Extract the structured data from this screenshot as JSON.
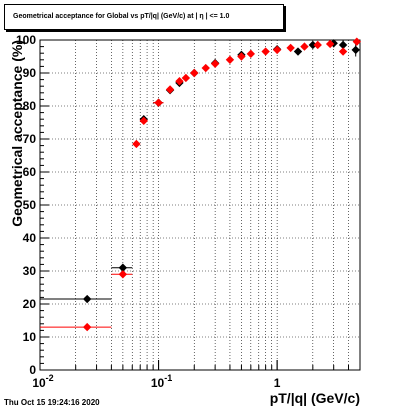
{
  "title": "Geometrical acceptance for Global vs pT/|q| (GeV/c) at | η | <= 1.0",
  "timestamp": "Thu Oct 15 19:24:16 2020",
  "colors": {
    "series_black": "#000000",
    "series_red": "#ff0000",
    "grid": "#000000",
    "frame": "#000000"
  },
  "chart_data": {
    "type": "scatter",
    "xlabel": "pT/|q| (GeV/c)",
    "ylabel": "Geometrical acceptance (%)",
    "x_scale": "log",
    "xlim": [
      0.01,
      5.0
    ],
    "ylim": [
      0,
      100
    ],
    "grid": true,
    "x_ticks": [
      {
        "value": 0.01,
        "label": "10",
        "sup": "-2"
      },
      {
        "value": 0.1,
        "label": "10",
        "sup": "-1"
      },
      {
        "value": 1,
        "label": "1",
        "sup": ""
      }
    ],
    "y_ticks": [
      0,
      10,
      20,
      30,
      40,
      50,
      60,
      70,
      80,
      90,
      100
    ],
    "series": [
      {
        "color": "#000000",
        "points": [
          {
            "x": 0.025,
            "y": 21.5,
            "xlo": 0.01,
            "xhi": 0.04,
            "err": 0.5
          },
          {
            "x": 0.05,
            "y": 31.0,
            "xlo": 0.04,
            "xhi": 0.06,
            "err": 0.8
          },
          {
            "x": 0.075,
            "y": 76.0,
            "xlo": 0.07,
            "xhi": 0.08,
            "err": 1.0
          },
          {
            "x": 0.1,
            "y": 81.0,
            "xlo": 0.09,
            "xhi": 0.11,
            "err": 0.8
          },
          {
            "x": 0.125,
            "y": 84.8,
            "err": 0.5
          },
          {
            "x": 0.15,
            "y": 87.0,
            "err": 0.4
          },
          {
            "x": 0.2,
            "y": 90.0,
            "err": 0.3
          },
          {
            "x": 0.3,
            "y": 93.0,
            "err": 0.3
          },
          {
            "x": 0.5,
            "y": 95.5,
            "err": 0.3
          },
          {
            "x": 1.0,
            "y": 97.2,
            "err": 0.4
          },
          {
            "x": 1.5,
            "y": 96.5,
            "err": 0.8
          },
          {
            "x": 2.0,
            "y": 98.5,
            "err": 1.0
          },
          {
            "x": 3.0,
            "y": 99.0,
            "err": 1.2
          },
          {
            "x": 3.6,
            "y": 98.5,
            "err": 1.5
          },
          {
            "x": 4.6,
            "y": 97.0,
            "err": 2.0
          }
        ]
      },
      {
        "color": "#ff0000",
        "points": [
          {
            "x": 0.025,
            "y": 13.0,
            "xlo": 0.01,
            "xhi": 0.04,
            "err": 0.5
          },
          {
            "x": 0.05,
            "y": 29.0,
            "xlo": 0.04,
            "xhi": 0.06,
            "err": 0.8
          },
          {
            "x": 0.065,
            "y": 68.5,
            "err": 0.8
          },
          {
            "x": 0.075,
            "y": 75.5,
            "xlo": 0.07,
            "xhi": 0.08,
            "err": 0.8
          },
          {
            "x": 0.1,
            "y": 81.0,
            "xlo": 0.09,
            "xhi": 0.11,
            "err": 0.6
          },
          {
            "x": 0.125,
            "y": 85.0,
            "err": 0.4
          },
          {
            "x": 0.15,
            "y": 87.5,
            "err": 0.3
          },
          {
            "x": 0.17,
            "y": 88.5,
            "err": 0.3
          },
          {
            "x": 0.2,
            "y": 90.0,
            "err": 0.3
          },
          {
            "x": 0.25,
            "y": 91.5,
            "err": 0.3
          },
          {
            "x": 0.3,
            "y": 92.8,
            "err": 0.3
          },
          {
            "x": 0.4,
            "y": 94.0,
            "err": 0.3
          },
          {
            "x": 0.5,
            "y": 95.0,
            "err": 0.3
          },
          {
            "x": 0.6,
            "y": 95.8,
            "err": 0.3
          },
          {
            "x": 0.8,
            "y": 96.5,
            "err": 0.3
          },
          {
            "x": 1.0,
            "y": 97.0,
            "err": 0.3
          },
          {
            "x": 1.3,
            "y": 97.6,
            "err": 0.3
          },
          {
            "x": 1.7,
            "y": 98.0,
            "err": 0.4
          },
          {
            "x": 2.2,
            "y": 98.5,
            "err": 0.5
          },
          {
            "x": 2.8,
            "y": 98.8,
            "err": 0.6
          },
          {
            "x": 3.6,
            "y": 96.5,
            "err": 0.8
          },
          {
            "x": 4.7,
            "y": 99.5,
            "err": 0.8
          }
        ]
      }
    ]
  }
}
